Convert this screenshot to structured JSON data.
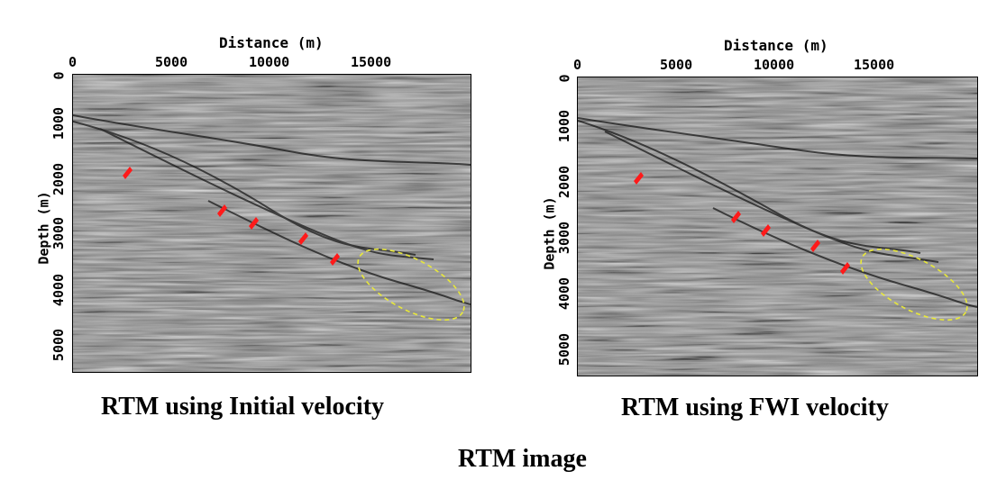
{
  "panels": [
    {
      "x_axis_title": "Distance (m)",
      "y_axis_title": "Depth (m)",
      "x_ticks": [
        "0",
        "5000",
        "10000",
        "15000"
      ],
      "y_ticks": [
        "0",
        "1000",
        "2000",
        "3000",
        "4000",
        "5000"
      ],
      "caption": "RTM using Initial velocity",
      "arrow_color": "#ff1a1a",
      "ellipse_color": "#e8e83a"
    },
    {
      "x_axis_title": "Distance (m)",
      "y_axis_title": "Depth (m)",
      "x_ticks": [
        "0",
        "5000",
        "10000",
        "15000"
      ],
      "y_ticks": [
        "0",
        "1000",
        "2000",
        "3000",
        "4000",
        "5000"
      ],
      "caption": "RTM using FWI velocity",
      "arrow_color": "#ff1a1a",
      "ellipse_color": "#e8e83a"
    }
  ],
  "figure_caption": "RTM image"
}
